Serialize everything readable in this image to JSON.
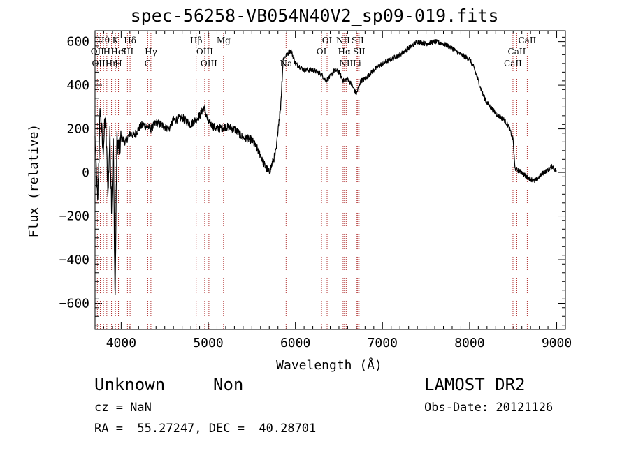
{
  "header": {
    "title": "spec-56258-VB054N40V2_sp09-019.fits"
  },
  "info": {
    "object_type": "Unknown",
    "object_class": "Non",
    "survey": "LAMOST DR2",
    "cz": "cz = NaN",
    "obs_date": "Obs-Date: 20121126",
    "radec": "RA =  55.27247, DEC =  40.28701"
  },
  "chart_data": {
    "type": "line",
    "title": "spec-56258-VB054N40V2_sp09-019.fits",
    "xlabel": "Wavelength (Å)",
    "ylabel": "Flux (relative)",
    "xlim": [
      3700,
      9100
    ],
    "ylim": [
      -720,
      650
    ],
    "xticks": [
      4000,
      5000,
      6000,
      7000,
      8000,
      9000
    ],
    "xtick_labels": [
      "4000",
      "5000",
      "6000",
      "7000",
      "8000",
      "9000"
    ],
    "yticks": [
      -600,
      -400,
      -200,
      0,
      200,
      400,
      600
    ],
    "ytick_labels": [
      "−600",
      "−400",
      "−200",
      "0",
      "200",
      "400",
      "600"
    ],
    "grid": false,
    "colors": {
      "line": "#000000",
      "marker": "#b03030"
    },
    "series": [
      {
        "x": [
          3700,
          3730,
          3760,
          3790,
          3820,
          3850,
          3870,
          3890,
          3910,
          3930,
          3950,
          3980,
          4000,
          4050,
          4100,
          4150,
          4200,
          4250,
          4300,
          4350,
          4400,
          4450,
          4500,
          4550,
          4600,
          4700,
          4800,
          4900,
          4950,
          5000,
          5100,
          5200,
          5300,
          5400,
          5500,
          5600,
          5650,
          5700,
          5750,
          5780,
          5800,
          5830,
          5860,
          5900,
          5950,
          6000,
          6100,
          6200,
          6300,
          6350,
          6400,
          6450,
          6500,
          6550,
          6600,
          6650,
          6700,
          6750,
          6800,
          6900,
          7000,
          7100,
          7200,
          7300,
          7400,
          7500,
          7600,
          7700,
          7800,
          7900,
          8000,
          8050,
          8100,
          8150,
          8200,
          8300,
          8400,
          8450,
          8500,
          8520,
          8550,
          8600,
          8650,
          8700,
          8750,
          8800,
          8850,
          8900,
          8950,
          9000
        ],
        "y": [
          150,
          -150,
          300,
          100,
          250,
          -100,
          180,
          -150,
          150,
          -600,
          150,
          100,
          160,
          140,
          180,
          170,
          200,
          220,
          210,
          200,
          230,
          220,
          210,
          200,
          240,
          250,
          220,
          260,
          300,
          230,
          200,
          210,
          200,
          160,
          150,
          80,
          30,
          0,
          60,
          100,
          200,
          300,
          520,
          540,
          560,
          500,
          470,
          470,
          450,
          420,
          440,
          470,
          460,
          420,
          430,
          400,
          360,
          420,
          430,
          470,
          500,
          520,
          540,
          570,
          600,
          590,
          600,
          590,
          570,
          540,
          520,
          480,
          420,
          360,
          320,
          270,
          240,
          210,
          150,
          20,
          10,
          0,
          -20,
          -30,
          -40,
          -20,
          0,
          10,
          30,
          0
        ]
      }
    ],
    "lines": [
      {
        "label": "Hθ",
        "x": 3797,
        "row": 0
      },
      {
        "label": "OII",
        "x": 3727,
        "row": 1
      },
      {
        "label": "OIII",
        "x": 3760,
        "row": 2
      },
      {
        "label": "H",
        "x": 3835,
        "row": 1
      },
      {
        "label": "Hη",
        "x": 3889,
        "row": 2
      },
      {
        "label": "K",
        "x": 3934,
        "row": 0
      },
      {
        "label": "HeI",
        "x": 3969,
        "row": 1
      },
      {
        "label": "H",
        "x": 3969,
        "row": 2
      },
      {
        "label": "SII",
        "x": 4072,
        "row": 1
      },
      {
        "label": "Hδ",
        "x": 4102,
        "row": 0
      },
      {
        "label": "Hγ",
        "x": 4341,
        "row": 1
      },
      {
        "label": "G",
        "x": 4305,
        "row": 2
      },
      {
        "label": "Hβ",
        "x": 4861,
        "row": 0
      },
      {
        "label": "OIII",
        "x": 4959,
        "row": 1
      },
      {
        "label": "OIII",
        "x": 5007,
        "row": 2
      },
      {
        "label": "Mg",
        "x": 5175,
        "row": 0
      },
      {
        "label": "Na",
        "x": 5893,
        "row": 2
      },
      {
        "label": "OI",
        "x": 6364,
        "row": 0
      },
      {
        "label": "OI",
        "x": 6300,
        "row": 1
      },
      {
        "label": "NII",
        "x": 6548,
        "row": 0
      },
      {
        "label": "Hα",
        "x": 6563,
        "row": 1
      },
      {
        "label": "NII",
        "x": 6583,
        "row": 2
      },
      {
        "label": "SII",
        "x": 6716,
        "row": 0
      },
      {
        "label": "SII",
        "x": 6731,
        "row": 1
      },
      {
        "label": "Li",
        "x": 6707,
        "row": 2
      },
      {
        "label": "CaII",
        "x": 8662,
        "row": 0
      },
      {
        "label": "CaII",
        "x": 8542,
        "row": 1
      },
      {
        "label": "CaII",
        "x": 8498,
        "row": 2
      }
    ]
  }
}
